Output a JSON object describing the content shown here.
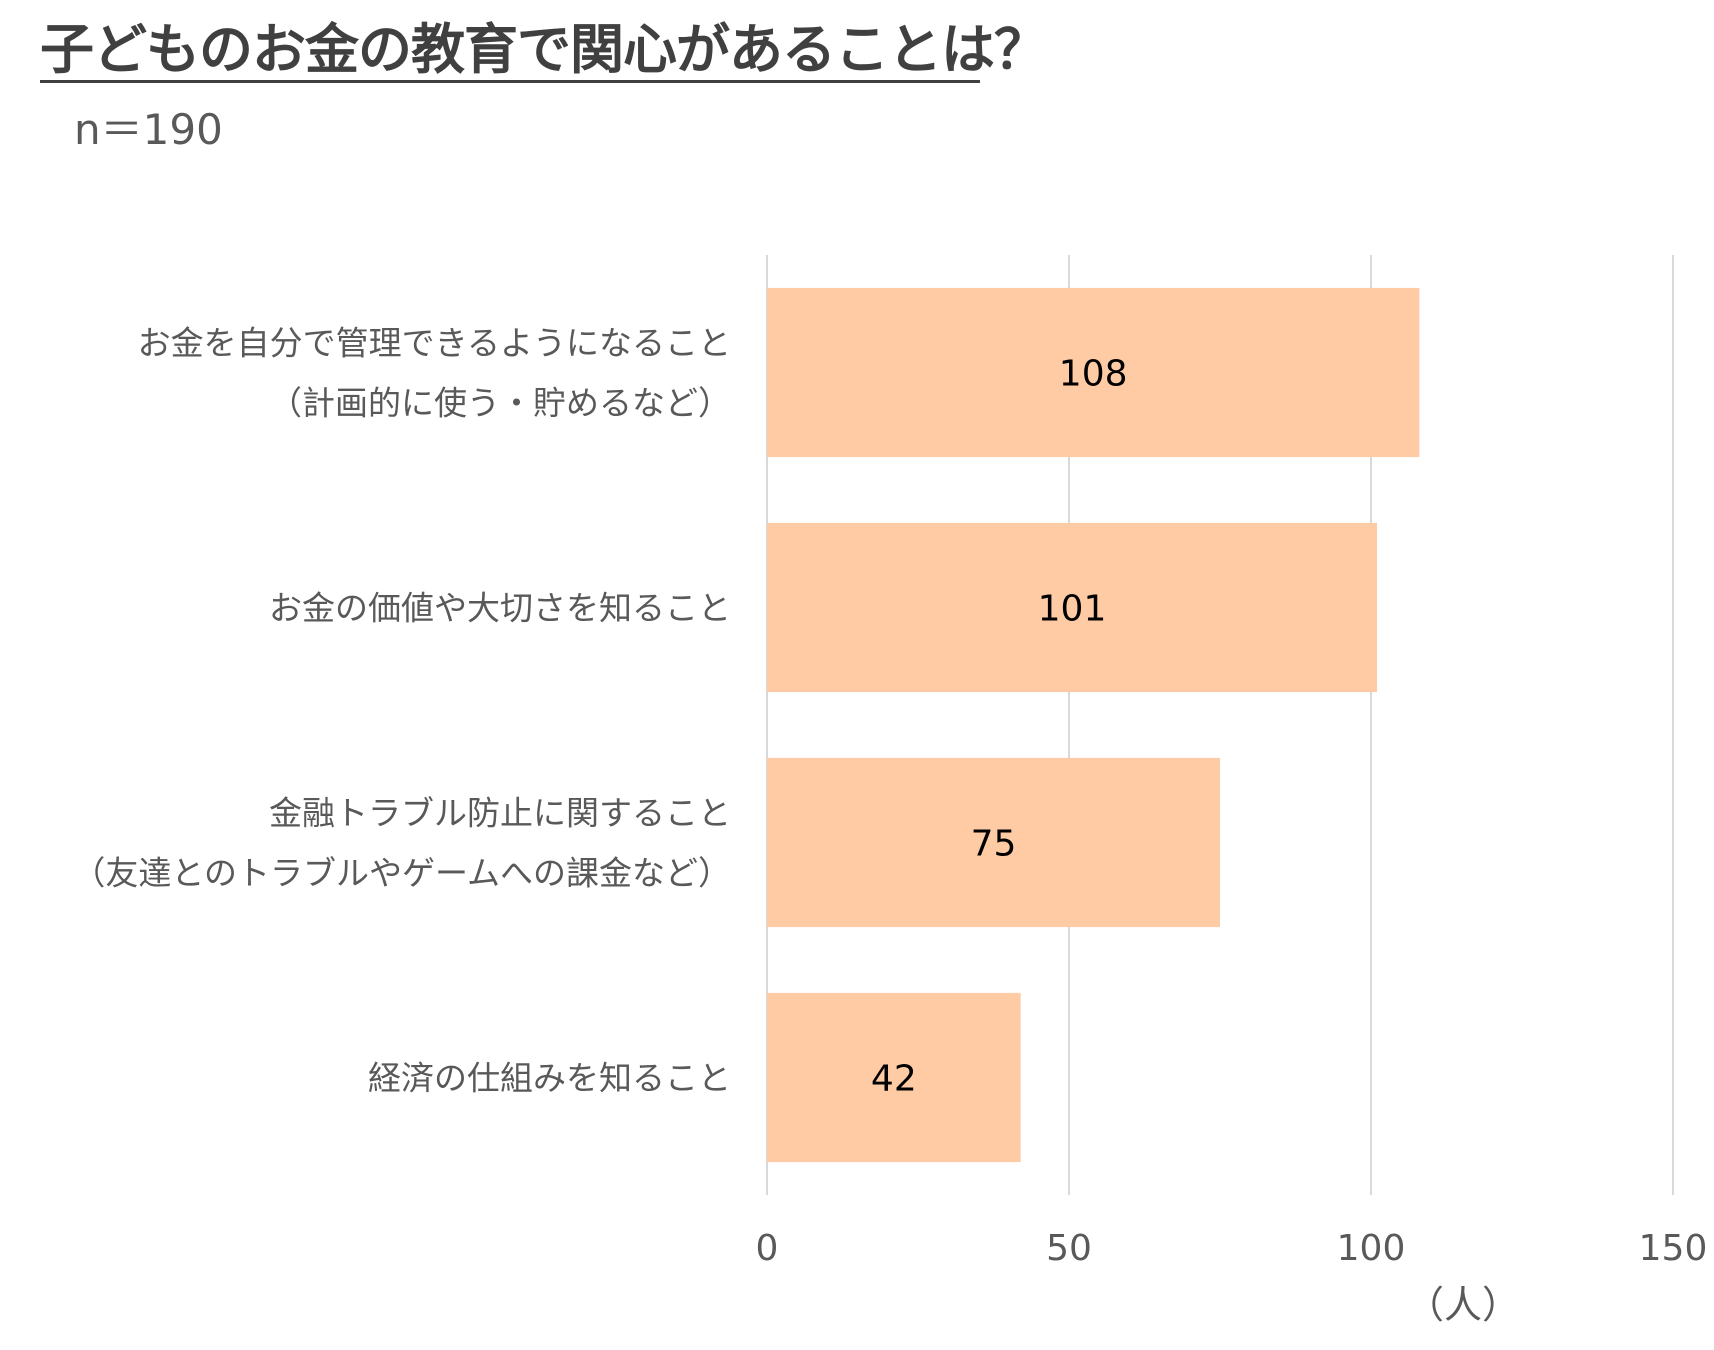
{
  "header": {
    "title": "子どものお金の教育で関心があることは？",
    "sample_size": "n＝190"
  },
  "chart_data": {
    "type": "bar",
    "orientation": "horizontal",
    "categories": [
      [
        "お金を自分で管理できるようになること",
        "（計画的に使う・貯めるなど）"
      ],
      [
        "お金の価値や大切さを知ること"
      ],
      [
        "金融トラブル防止に関すること",
        "（友達とのトラブルやゲームへの課金など）"
      ],
      [
        "経済の仕組みを知ること"
      ]
    ],
    "values": [
      108,
      101,
      75,
      42
    ],
    "xlim": [
      0,
      150
    ],
    "xticks": [
      0,
      50,
      100,
      150
    ],
    "x_unit": "（人）",
    "bar_color": "#FFCBA4",
    "grid": true,
    "grid_color": "#D9D9D9",
    "legend": "none"
  }
}
